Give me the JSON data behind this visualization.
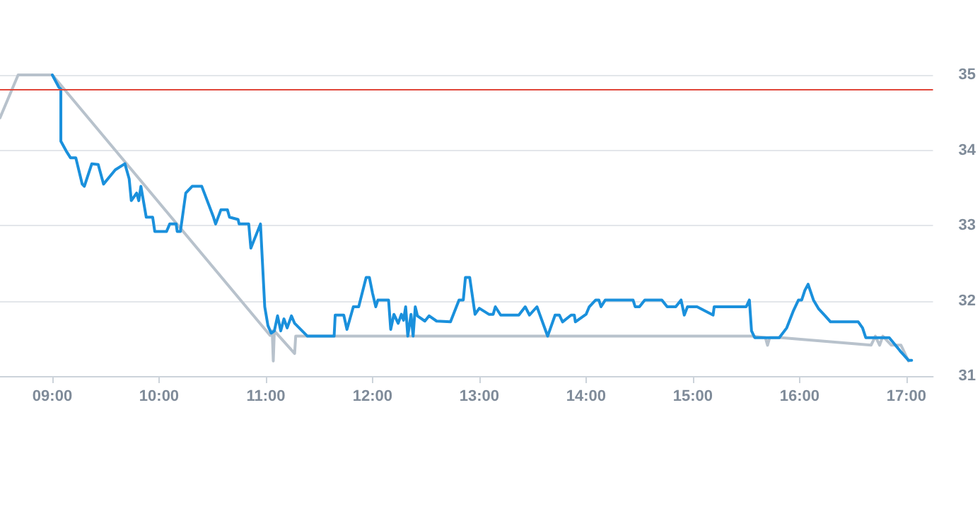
{
  "chart_data": {
    "type": "line",
    "xlim": [
      8.51,
      17.25
    ],
    "ylim": [
      31,
      35
    ],
    "xticks": [
      {
        "value": 9,
        "label": "09:00"
      },
      {
        "value": 10,
        "label": "10:00"
      },
      {
        "value": 11,
        "label": "11:00"
      },
      {
        "value": 12,
        "label": "12:00"
      },
      {
        "value": 13,
        "label": "13:00"
      },
      {
        "value": 14,
        "label": "14:00"
      },
      {
        "value": 15,
        "label": "15:00"
      },
      {
        "value": 16,
        "label": "16:00"
      },
      {
        "value": 17,
        "label": "17:00"
      }
    ],
    "yticks": [
      31,
      32,
      33,
      34,
      35
    ],
    "grid": "y",
    "marker": "none",
    "line_style": "solid",
    "ref_lines": [
      {
        "axis": "y",
        "value": 34.8,
        "color": "#e0463a"
      }
    ],
    "series": [
      {
        "color": "#b8c2cc",
        "x": [
          8.51,
          8.68,
          9.0,
          11.04,
          11.06,
          11.07,
          11.08,
          11.27,
          11.28,
          15.55,
          15.68,
          15.7,
          15.72,
          15.83,
          16.67,
          16.71,
          16.75,
          16.78,
          16.86,
          16.95,
          16.97,
          17.0,
          17.02
        ],
        "values": [
          34.43,
          35,
          35,
          31.54,
          31.6,
          31.2,
          31.6,
          31.3,
          31.53,
          31.53,
          31.51,
          31.41,
          31.51,
          31.51,
          31.41,
          31.53,
          31.41,
          31.53,
          31.41,
          31.41,
          31.35,
          31.26,
          31.2
        ]
      },
      {
        "color": "#1a90dc",
        "x": [
          9.0,
          9.06,
          9.08,
          9.08,
          9.13,
          9.17,
          9.22,
          9.28,
          9.3,
          9.37,
          9.43,
          9.48,
          9.59,
          9.68,
          9.72,
          9.74,
          9.79,
          9.81,
          9.83,
          9.88,
          9.94,
          9.96,
          10.07,
          10.1,
          10.16,
          10.17,
          10.2,
          10.25,
          10.31,
          10.4,
          10.51,
          10.53,
          10.58,
          10.64,
          10.66,
          10.74,
          10.75,
          10.84,
          10.86,
          10.95,
          10.99,
          11.02,
          11.05,
          11.08,
          11.11,
          11.14,
          11.17,
          11.2,
          11.24,
          11.27,
          11.39,
          11.64,
          11.65,
          11.73,
          11.76,
          11.82,
          11.87,
          11.94,
          11.97,
          12.0,
          12.03,
          12.05,
          12.15,
          12.17,
          12.2,
          12.24,
          12.27,
          12.29,
          12.31,
          12.33,
          12.36,
          12.38,
          12.4,
          12.42,
          12.49,
          12.53,
          12.6,
          12.73,
          12.81,
          12.85,
          12.87,
          12.91,
          12.96,
          13.0,
          13.09,
          13.13,
          13.15,
          13.2,
          13.37,
          13.43,
          13.47,
          13.54,
          13.64,
          13.71,
          13.75,
          13.78,
          13.86,
          13.89,
          13.9,
          14.0,
          14.03,
          14.09,
          14.12,
          14.14,
          14.18,
          14.44,
          14.46,
          14.5,
          14.55,
          14.71,
          14.76,
          14.84,
          14.89,
          14.92,
          14.95,
          15.04,
          15.19,
          15.2,
          15.5,
          15.53,
          15.55,
          15.58,
          15.81,
          15.88,
          15.94,
          15.99,
          16.02,
          16.05,
          16.08,
          16.13,
          16.18,
          16.24,
          16.29,
          16.55,
          16.59,
          16.62,
          16.84,
          16.95,
          17.02,
          17.05
        ],
        "values": [
          35,
          34.84,
          34.81,
          34.12,
          33.99,
          33.9,
          33.9,
          33.55,
          33.52,
          33.82,
          33.81,
          33.55,
          33.74,
          33.82,
          33.62,
          33.33,
          33.43,
          33.33,
          33.52,
          33.11,
          33.11,
          32.92,
          32.92,
          33.02,
          33.02,
          32.92,
          32.92,
          33.43,
          33.52,
          33.52,
          33.11,
          33.02,
          33.21,
          33.21,
          33.11,
          33.08,
          33.02,
          33.02,
          32.7,
          33.02,
          31.92,
          31.67,
          31.57,
          31.6,
          31.8,
          31.6,
          31.76,
          31.64,
          31.8,
          31.7,
          31.53,
          31.53,
          31.81,
          31.81,
          31.62,
          31.92,
          31.92,
          32.31,
          32.31,
          32.1,
          31.92,
          32.01,
          32.01,
          31.62,
          31.82,
          31.7,
          31.82,
          31.74,
          31.92,
          31.53,
          31.82,
          31.53,
          31.92,
          31.8,
          31.73,
          31.8,
          31.73,
          31.72,
          32.01,
          32.01,
          32.31,
          32.31,
          31.82,
          31.9,
          31.82,
          31.82,
          31.92,
          31.81,
          31.81,
          31.92,
          31.81,
          31.92,
          31.53,
          31.81,
          31.81,
          31.72,
          31.81,
          31.81,
          31.72,
          31.82,
          31.92,
          32.01,
          32.01,
          31.92,
          32.01,
          32.01,
          31.92,
          31.92,
          32.01,
          32.01,
          31.92,
          31.92,
          32.01,
          31.81,
          31.92,
          31.92,
          31.81,
          31.92,
          31.92,
          32.01,
          31.6,
          31.51,
          31.51,
          31.64,
          31.86,
          32.01,
          32.01,
          32.14,
          32.22,
          32.01,
          31.89,
          31.8,
          31.72,
          31.72,
          31.64,
          31.51,
          31.51,
          31.32,
          31.21,
          31.21
        ]
      }
    ]
  }
}
